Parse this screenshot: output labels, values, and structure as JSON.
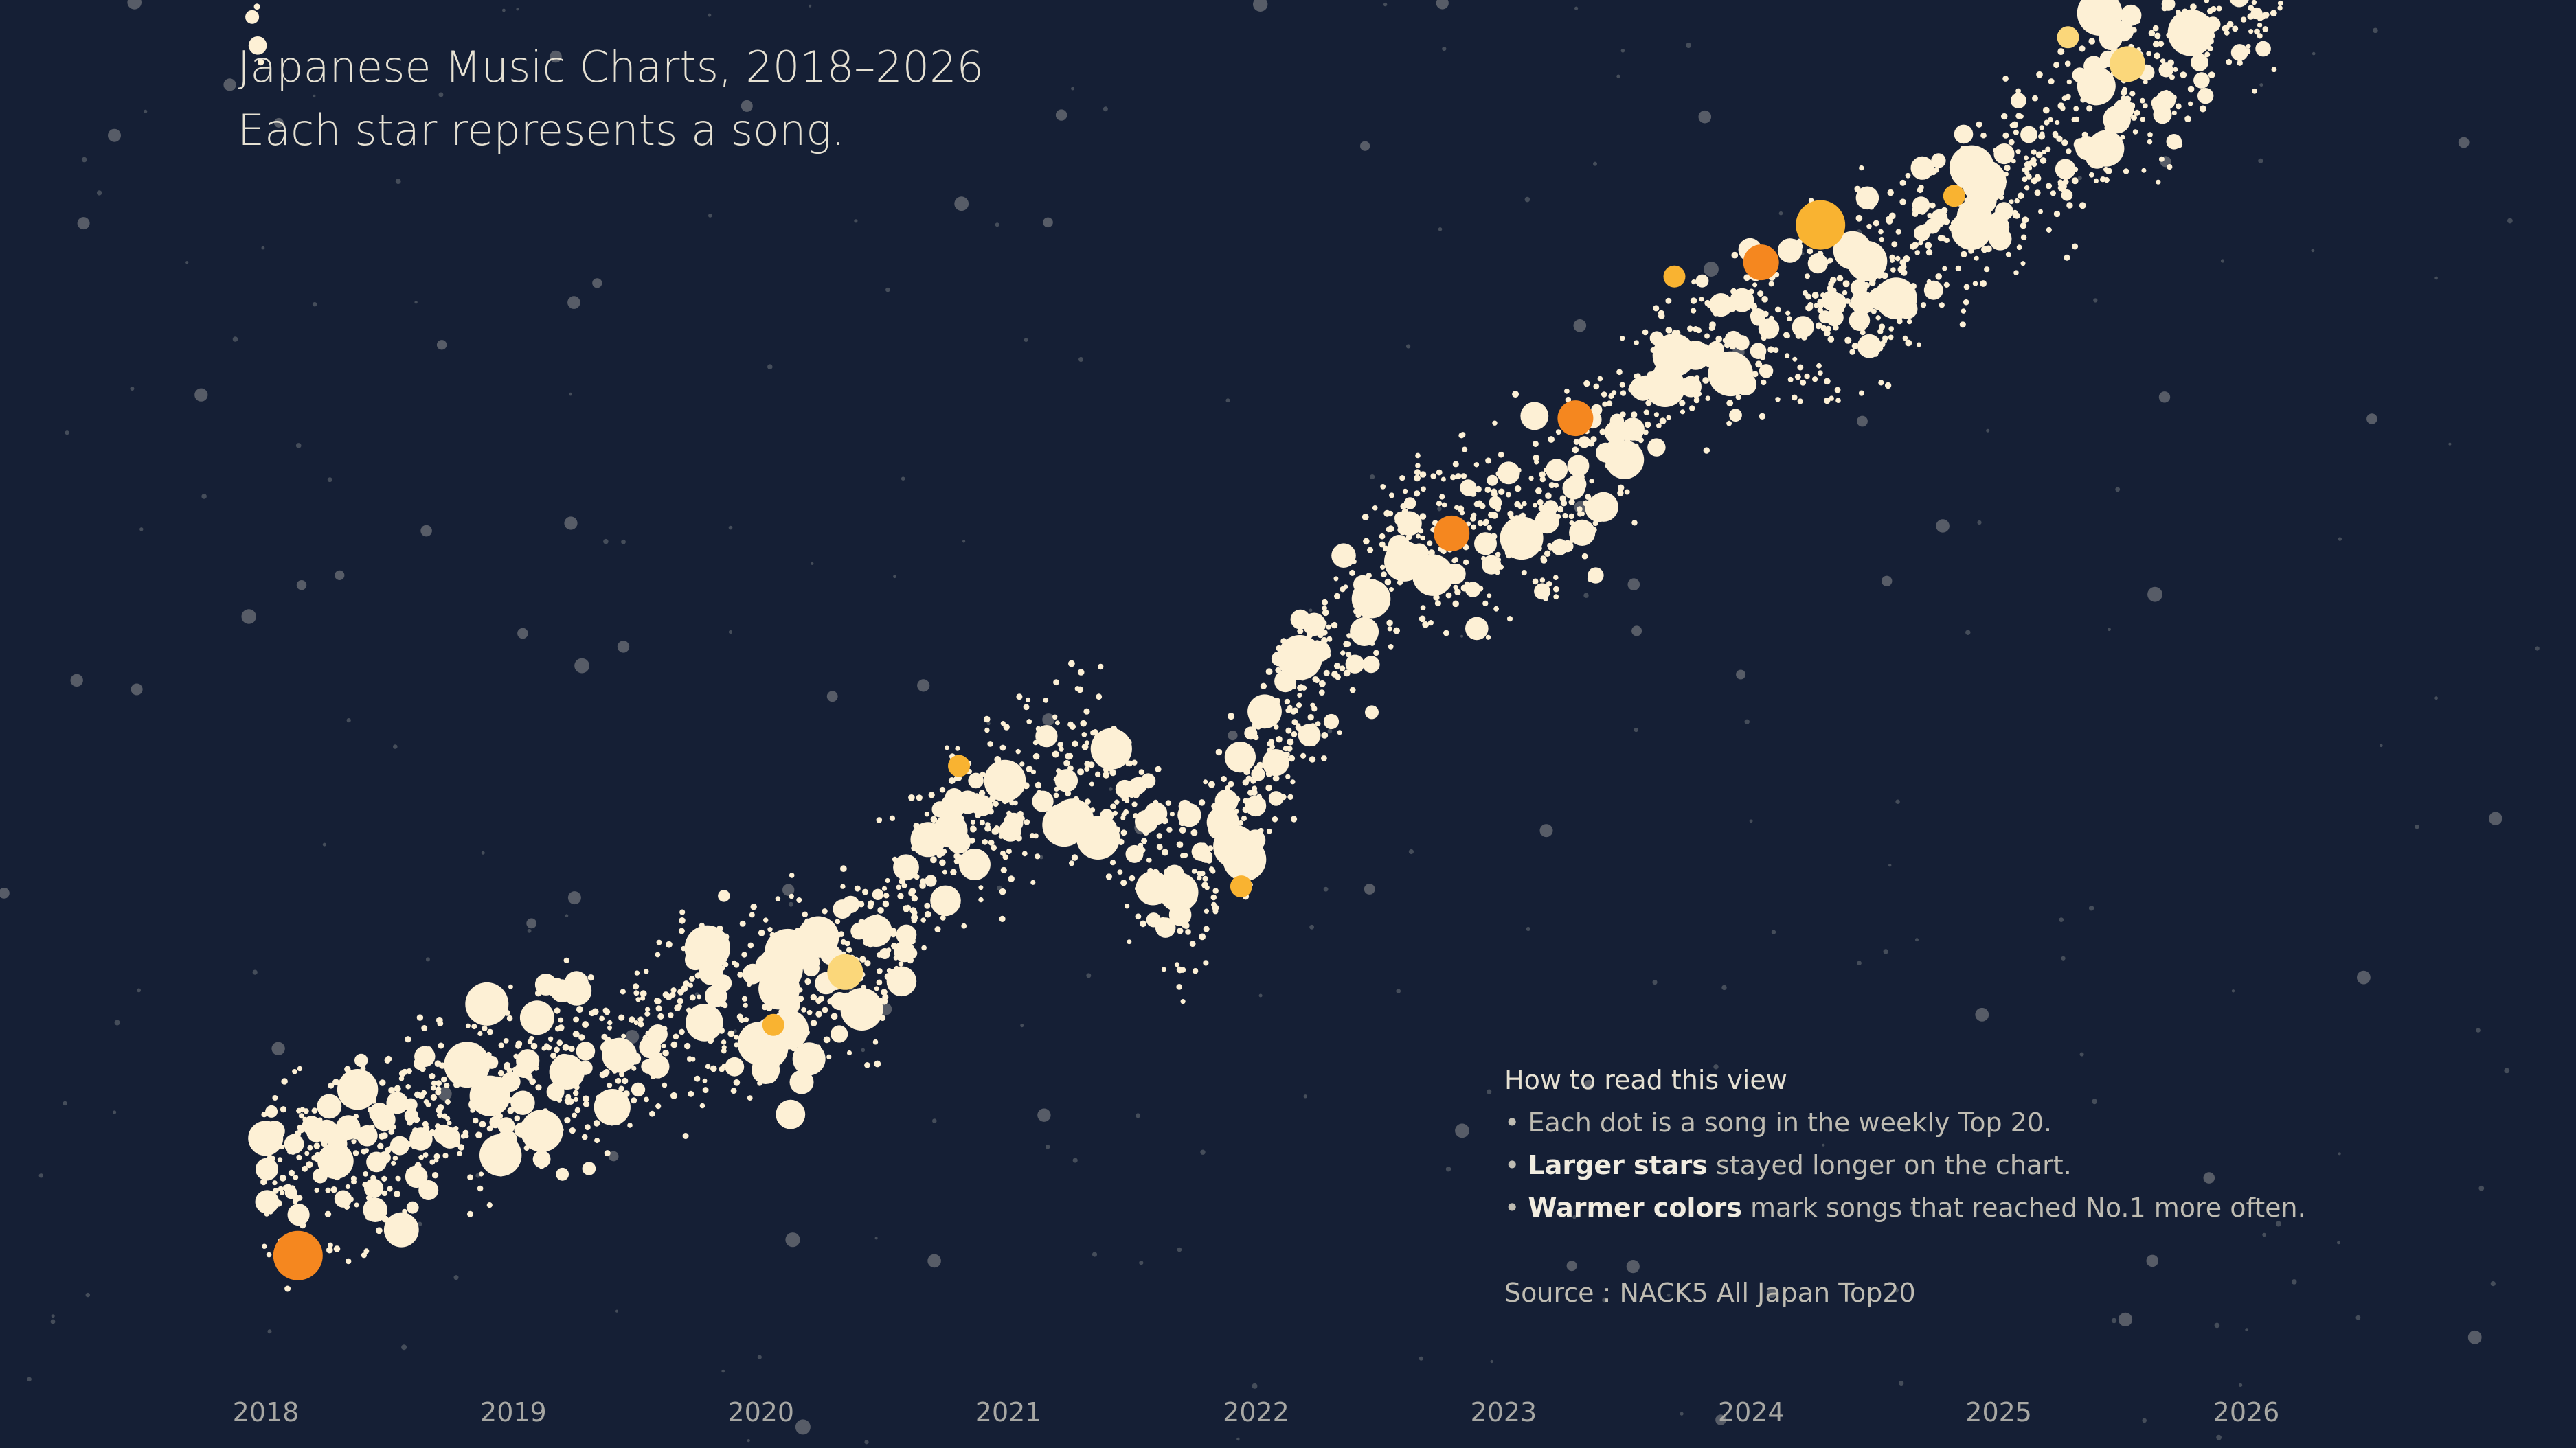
{
  "title": "Japanese Music Charts, 2018–2026",
  "subtitle": "Each star represents a song.",
  "legend": {
    "heading": "How to read this view",
    "items": [
      {
        "bold": "",
        "text": "Each dot is a song in the weekly Top 20."
      },
      {
        "bold": "Larger stars",
        "text": " stayed longer on the chart."
      },
      {
        "bold": "Warmer colors",
        "text": " mark songs that reached No.1 more often."
      }
    ],
    "bullet": "•",
    "source": "Source : NACK5 All Japan Top20"
  },
  "colors": {
    "background": "#151f35",
    "song_dot": "#fdf0d5",
    "background_star": "#6d7278",
    "warm_low": "#fbd77a",
    "warm_mid": "#f9b331",
    "warm_high": "#f5871f"
  },
  "chart_data": {
    "type": "scatter",
    "title": "Japanese Music Charts, 2018–2026",
    "xlabel": "",
    "ylabel": "",
    "xlim": [
      2018,
      2026
    ],
    "x_ticks": [
      "2018",
      "2019",
      "2020",
      "2021",
      "2022",
      "2023",
      "2024",
      "2025",
      "2026"
    ],
    "grid": false,
    "highlighted_songs": [
      {
        "x": 2018.13,
        "size": "large",
        "warmth": "high"
      },
      {
        "x": 2020.05,
        "size": "small",
        "warmth": "mid"
      },
      {
        "x": 2020.34,
        "size": "medium",
        "warmth": "low"
      },
      {
        "x": 2020.8,
        "size": "small",
        "warmth": "mid"
      },
      {
        "x": 2021.94,
        "size": "small",
        "warmth": "mid"
      },
      {
        "x": 2022.79,
        "size": "medium",
        "warmth": "high"
      },
      {
        "x": 2023.29,
        "size": "medium",
        "warmth": "high"
      },
      {
        "x": 2023.69,
        "size": "small",
        "warmth": "mid"
      },
      {
        "x": 2024.04,
        "size": "medium",
        "warmth": "high"
      },
      {
        "x": 2024.28,
        "size": "large",
        "warmth": "mid"
      },
      {
        "x": 2024.82,
        "size": "small",
        "warmth": "mid"
      },
      {
        "x": 2025.28,
        "size": "small",
        "warmth": "low"
      },
      {
        "x": 2025.52,
        "size": "medium",
        "warmth": "low"
      }
    ]
  }
}
